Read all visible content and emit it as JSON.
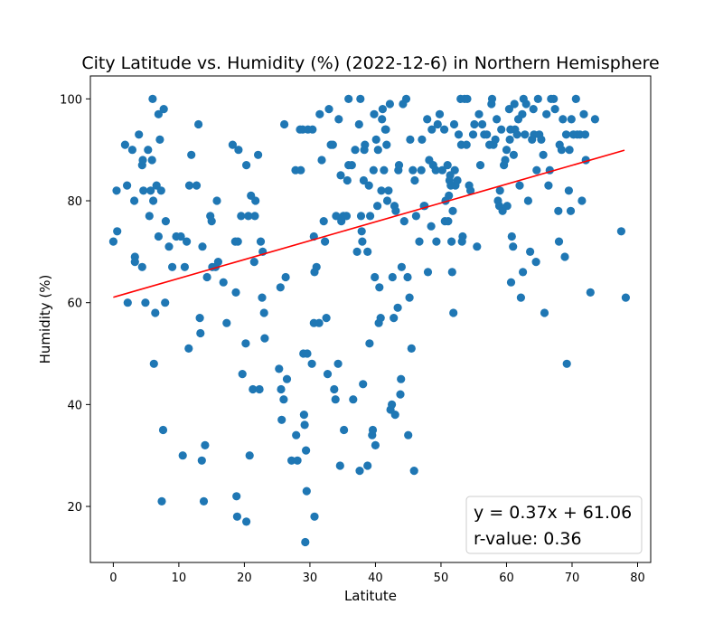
{
  "chart_data": {
    "type": "scatter",
    "title": "City Latitude vs. Humidity (%) (2022-12-6) in Northern Hemisphere",
    "xlabel": "Latitute",
    "ylabel": "Humidity (%)",
    "xlim": [
      -3.5,
      82
    ],
    "ylim": [
      9,
      104.5
    ],
    "xticks": [
      0,
      10,
      20,
      30,
      40,
      50,
      60,
      70,
      80
    ],
    "yticks": [
      20,
      40,
      60,
      80,
      100
    ],
    "grid": false,
    "marker_color": "#1f77b4",
    "regression": {
      "slope": 0.37,
      "intercept": 61.06,
      "x_range": [
        0,
        78
      ],
      "color": "#ff0000",
      "equation_label": "y = 0.37x + 61.06",
      "r_label": "r-value: 0.36",
      "label_placement": "bottom-right"
    },
    "points": [
      [
        0,
        72
      ],
      [
        0.5,
        82
      ],
      [
        0.6,
        74
      ],
      [
        1.8,
        91
      ],
      [
        2.1,
        83
      ],
      [
        2.2,
        60
      ],
      [
        2.9,
        90
      ],
      [
        3.2,
        80
      ],
      [
        3.3,
        69
      ],
      [
        3.3,
        68
      ],
      [
        3.9,
        93
      ],
      [
        4.4,
        67
      ],
      [
        4.4,
        87
      ],
      [
        4.5,
        88
      ],
      [
        4.6,
        82
      ],
      [
        4.9,
        60
      ],
      [
        5.3,
        90
      ],
      [
        5.5,
        77
      ],
      [
        5.7,
        82
      ],
      [
        5.9,
        88
      ],
      [
        6.0,
        100
      ],
      [
        6.1,
        80
      ],
      [
        6.2,
        48
      ],
      [
        6.4,
        58
      ],
      [
        6.6,
        83
      ],
      [
        6.9,
        97
      ],
      [
        6.9,
        73
      ],
      [
        7.1,
        92
      ],
      [
        7.3,
        82
      ],
      [
        7.4,
        21
      ],
      [
        7.6,
        35
      ],
      [
        7.7,
        98
      ],
      [
        7.9,
        60
      ],
      [
        8.0,
        76
      ],
      [
        8.5,
        71
      ],
      [
        9.0,
        67
      ],
      [
        9.6,
        73
      ],
      [
        10.3,
        73
      ],
      [
        10.6,
        30
      ],
      [
        10.9,
        67
      ],
      [
        11.2,
        72
      ],
      [
        11.5,
        51
      ],
      [
        11.6,
        83
      ],
      [
        11.9,
        89
      ],
      [
        12.7,
        83
      ],
      [
        13.0,
        95
      ],
      [
        13.2,
        57
      ],
      [
        13.3,
        54
      ],
      [
        13.5,
        29
      ],
      [
        13.6,
        71
      ],
      [
        13.8,
        21
      ],
      [
        14.0,
        32
      ],
      [
        14.3,
        65
      ],
      [
        14.8,
        77
      ],
      [
        15.0,
        76
      ],
      [
        15.1,
        67
      ],
      [
        15.6,
        67
      ],
      [
        15.8,
        80
      ],
      [
        16.0,
        68
      ],
      [
        16.8,
        64
      ],
      [
        17.3,
        56
      ],
      [
        18.2,
        91
      ],
      [
        18.6,
        72
      ],
      [
        18.7,
        62
      ],
      [
        18.8,
        22
      ],
      [
        18.9,
        18
      ],
      [
        19.0,
        72
      ],
      [
        19.1,
        90
      ],
      [
        19.5,
        77
      ],
      [
        19.7,
        46
      ],
      [
        20.2,
        52
      ],
      [
        20.3,
        87
      ],
      [
        20.3,
        17
      ],
      [
        20.6,
        77
      ],
      [
        20.8,
        30
      ],
      [
        21.0,
        81
      ],
      [
        21.3,
        43
      ],
      [
        21.5,
        68
      ],
      [
        21.6,
        77
      ],
      [
        21.7,
        80
      ],
      [
        22.1,
        89
      ],
      [
        22.3,
        43
      ],
      [
        22.5,
        72
      ],
      [
        22.7,
        61
      ],
      [
        22.8,
        70
      ],
      [
        23.0,
        58
      ],
      [
        23.1,
        53
      ],
      [
        25.3,
        47
      ],
      [
        25.5,
        63
      ],
      [
        25.6,
        43
      ],
      [
        25.7,
        37
      ],
      [
        26.0,
        41
      ],
      [
        26.1,
        95
      ],
      [
        26.3,
        65
      ],
      [
        26.5,
        45
      ],
      [
        27.2,
        29
      ],
      [
        27.8,
        86
      ],
      [
        27.9,
        34
      ],
      [
        28.1,
        29
      ],
      [
        28.5,
        94
      ],
      [
        28.6,
        86
      ],
      [
        28.9,
        94
      ],
      [
        29.0,
        50
      ],
      [
        29.1,
        38
      ],
      [
        29.2,
        36
      ],
      [
        29.3,
        13
      ],
      [
        29.4,
        31
      ],
      [
        29.5,
        23
      ],
      [
        29.6,
        50
      ],
      [
        29.7,
        94
      ],
      [
        30.3,
        48
      ],
      [
        30.4,
        94
      ],
      [
        30.6,
        73
      ],
      [
        30.6,
        56
      ],
      [
        30.7,
        18
      ],
      [
        30.7,
        66
      ],
      [
        31.0,
        67
      ],
      [
        31.4,
        56
      ],
      [
        31.5,
        97
      ],
      [
        31.8,
        88
      ],
      [
        32.1,
        76
      ],
      [
        32.3,
        72
      ],
      [
        32.5,
        57
      ],
      [
        32.7,
        46
      ],
      [
        32.9,
        98
      ],
      [
        33.2,
        91
      ],
      [
        33.5,
        91
      ],
      [
        33.7,
        43
      ],
      [
        33.9,
        41
      ],
      [
        34.0,
        77
      ],
      [
        34.3,
        48
      ],
      [
        34.4,
        96
      ],
      [
        34.6,
        28
      ],
      [
        34.7,
        85
      ],
      [
        34.8,
        76
      ],
      [
        35.1,
        77
      ],
      [
        35.2,
        35
      ],
      [
        35.6,
        77
      ],
      [
        35.7,
        84
      ],
      [
        35.9,
        100
      ],
      [
        35.9,
        87
      ],
      [
        36.4,
        87
      ],
      [
        36.6,
        41
      ],
      [
        36.9,
        90
      ],
      [
        37.2,
        70
      ],
      [
        37.5,
        95
      ],
      [
        37.6,
        27
      ],
      [
        37.7,
        100
      ],
      [
        37.8,
        77
      ],
      [
        37.9,
        74
      ],
      [
        38.0,
        72
      ],
      [
        38.1,
        44
      ],
      [
        38.2,
        84
      ],
      [
        38.3,
        90
      ],
      [
        38.4,
        91
      ],
      [
        38.8,
        70
      ],
      [
        38.8,
        28
      ],
      [
        39.0,
        83
      ],
      [
        39.1,
        52
      ],
      [
        39.2,
        77
      ],
      [
        39.5,
        34
      ],
      [
        39.6,
        35
      ],
      [
        39.7,
        86
      ],
      [
        39.8,
        97
      ],
      [
        39.9,
        65
      ],
      [
        40.0,
        32
      ],
      [
        40.1,
        92
      ],
      [
        40.3,
        79
      ],
      [
        40.4,
        90
      ],
      [
        40.5,
        56
      ],
      [
        40.6,
        63
      ],
      [
        40.8,
        57
      ],
      [
        40.9,
        82
      ],
      [
        41.0,
        96
      ],
      [
        41.1,
        98
      ],
      [
        41.3,
        86
      ],
      [
        41.5,
        94
      ],
      [
        41.6,
        94
      ],
      [
        41.7,
        91
      ],
      [
        41.8,
        80
      ],
      [
        42.0,
        82
      ],
      [
        42.2,
        99
      ],
      [
        42.3,
        39
      ],
      [
        42.5,
        40
      ],
      [
        42.6,
        65
      ],
      [
        42.8,
        57
      ],
      [
        42.9,
        79
      ],
      [
        43.0,
        38
      ],
      [
        43.1,
        78
      ],
      [
        43.4,
        59
      ],
      [
        43.5,
        86
      ],
      [
        43.6,
        87
      ],
      [
        43.8,
        42
      ],
      [
        43.9,
        45
      ],
      [
        44.0,
        67
      ],
      [
        44.2,
        99
      ],
      [
        44.4,
        76
      ],
      [
        44.7,
        100
      ],
      [
        44.9,
        65
      ],
      [
        45.0,
        34
      ],
      [
        45.2,
        61
      ],
      [
        45.3,
        92
      ],
      [
        45.5,
        51
      ],
      [
        45.7,
        86
      ],
      [
        45.9,
        27
      ],
      [
        46.0,
        84
      ],
      [
        46.2,
        77
      ],
      [
        46.7,
        72
      ],
      [
        47.0,
        86
      ],
      [
        47.1,
        92
      ],
      [
        47.4,
        79
      ],
      [
        47.5,
        79
      ],
      [
        47.9,
        96
      ],
      [
        48.0,
        66
      ],
      [
        48.2,
        88
      ],
      [
        48.5,
        75
      ],
      [
        48.6,
        94
      ],
      [
        48.8,
        87
      ],
      [
        49.2,
        86
      ],
      [
        49.3,
        72
      ],
      [
        49.5,
        95
      ],
      [
        49.8,
        97
      ],
      [
        50.2,
        86
      ],
      [
        50.5,
        94
      ],
      [
        50.6,
        76
      ],
      [
        50.7,
        80
      ],
      [
        51.0,
        87
      ],
      [
        51.1,
        76
      ],
      [
        51.2,
        81
      ],
      [
        51.3,
        84
      ],
      [
        51.4,
        85
      ],
      [
        51.5,
        83
      ],
      [
        51.6,
        72
      ],
      [
        51.7,
        66
      ],
      [
        51.8,
        78
      ],
      [
        51.9,
        58
      ],
      [
        52.0,
        95
      ],
      [
        52.1,
        86
      ],
      [
        52.2,
        83
      ],
      [
        52.5,
        84
      ],
      [
        52.7,
        93
      ],
      [
        53.0,
        100
      ],
      [
        53.1,
        91
      ],
      [
        53.2,
        72
      ],
      [
        53.3,
        73
      ],
      [
        53.6,
        100
      ],
      [
        53.9,
        91
      ],
      [
        54.0,
        100
      ],
      [
        54.3,
        83
      ],
      [
        54.5,
        82
      ],
      [
        54.9,
        93
      ],
      [
        55.1,
        95
      ],
      [
        55.5,
        71
      ],
      [
        55.8,
        97
      ],
      [
        56.0,
        87
      ],
      [
        56.3,
        95
      ],
      [
        56.6,
        93
      ],
      [
        57.0,
        93
      ],
      [
        57.4,
        91
      ],
      [
        57.7,
        99
      ],
      [
        57.8,
        100
      ],
      [
        58.0,
        91
      ],
      [
        58.3,
        92
      ],
      [
        58.5,
        96
      ],
      [
        58.7,
        80
      ],
      [
        58.9,
        79
      ],
      [
        59.0,
        82
      ],
      [
        59.2,
        94
      ],
      [
        59.4,
        78
      ],
      [
        59.6,
        87
      ],
      [
        59.8,
        88
      ],
      [
        60.0,
        90
      ],
      [
        60.1,
        79
      ],
      [
        60.4,
        98
      ],
      [
        60.5,
        92
      ],
      [
        60.6,
        94
      ],
      [
        60.7,
        64
      ],
      [
        60.8,
        73
      ],
      [
        61.0,
        71
      ],
      [
        61.1,
        89
      ],
      [
        61.2,
        99
      ],
      [
        61.3,
        94
      ],
      [
        61.6,
        93
      ],
      [
        61.8,
        96
      ],
      [
        62.0,
        83
      ],
      [
        62.2,
        61
      ],
      [
        62.4,
        97
      ],
      [
        62.5,
        66
      ],
      [
        62.6,
        100
      ],
      [
        62.8,
        93
      ],
      [
        63.0,
        99
      ],
      [
        63.3,
        80
      ],
      [
        63.6,
        70
      ],
      [
        63.9,
        92
      ],
      [
        64.1,
        98
      ],
      [
        64.2,
        93
      ],
      [
        64.5,
        68
      ],
      [
        64.6,
        86
      ],
      [
        64.8,
        100
      ],
      [
        65.0,
        93
      ],
      [
        65.3,
        92
      ],
      [
        65.6,
        89
      ],
      [
        65.8,
        58
      ],
      [
        66.1,
        97
      ],
      [
        66.4,
        83
      ],
      [
        66.6,
        86
      ],
      [
        66.8,
        100
      ],
      [
        67.2,
        100
      ],
      [
        67.4,
        98
      ],
      [
        67.9,
        78
      ],
      [
        68.0,
        72
      ],
      [
        68.1,
        91
      ],
      [
        68.4,
        90
      ],
      [
        68.6,
        96
      ],
      [
        68.9,
        69
      ],
      [
        69.1,
        93
      ],
      [
        69.2,
        48
      ],
      [
        69.5,
        82
      ],
      [
        69.6,
        90
      ],
      [
        69.8,
        78
      ],
      [
        69.9,
        96
      ],
      [
        70.2,
        93
      ],
      [
        70.6,
        100
      ],
      [
        70.8,
        93
      ],
      [
        71.2,
        93
      ],
      [
        71.5,
        80
      ],
      [
        71.8,
        97
      ],
      [
        72.0,
        93
      ],
      [
        72.1,
        88
      ],
      [
        72.8,
        62
      ],
      [
        73.5,
        96
      ],
      [
        77.5,
        74
      ],
      [
        78.2,
        61
      ]
    ]
  }
}
